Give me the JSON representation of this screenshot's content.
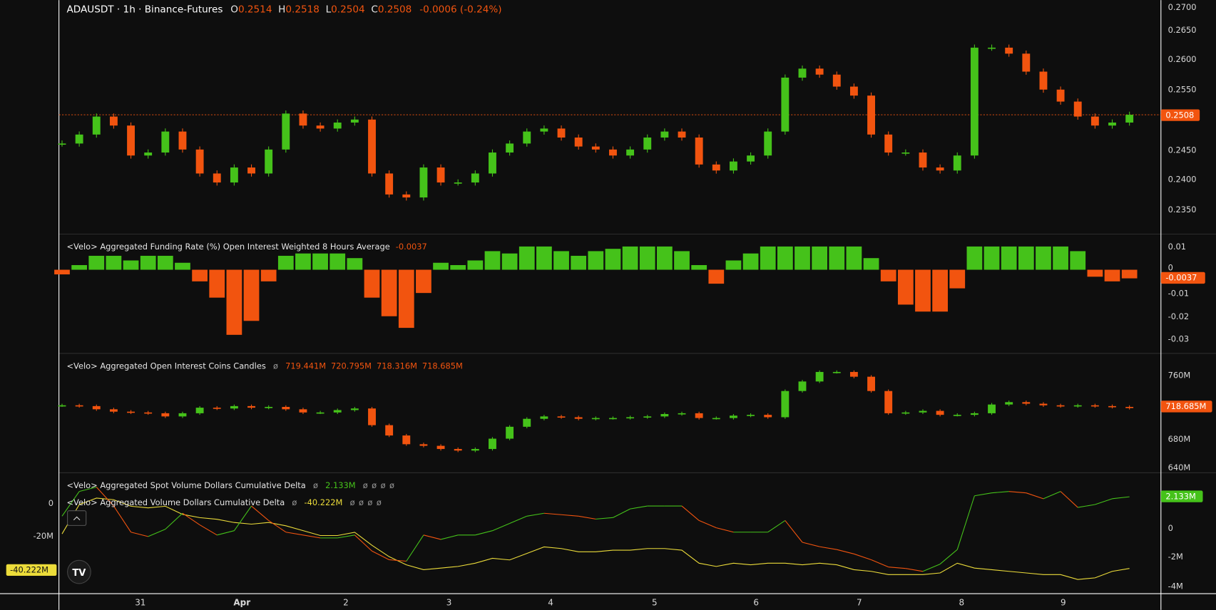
{
  "colors": {
    "up": "#45c21a",
    "down": "#f2540f",
    "yellow": "#ecdc3a",
    "background": "#0e0e0e"
  },
  "header": {
    "symbol": "ADAUSDT · 1h · Binance-Futures",
    "o_label": "O",
    "o": "0.2514",
    "h_label": "H",
    "h": "0.2518",
    "l_label": "L",
    "l": "0.2504",
    "c_label": "C",
    "c": "0.2508",
    "change": "-0.0006 (-0.24%)"
  },
  "funding": {
    "title": "<Velo> Aggregated Funding Rate (%) Open Interest Weighted 8 Hours Average",
    "value": "-0.0037"
  },
  "oi": {
    "title": "<Velo> Aggregated Open Interest Coins Candles",
    "values": [
      "719.441M",
      "720.795M",
      "718.316M",
      "718.685M"
    ]
  },
  "spot_cvd": {
    "title": "<Velo> Aggregated Spot Volume Dollars Cumulative Delta",
    "value": "2.133M"
  },
  "all_cvd": {
    "title": "<Velo> Aggregated Volume Dollars Cumulative Delta",
    "value": "-40.222M"
  },
  "icons": {
    "hidden_value": "ø",
    "collapse": "chevron-up-icon",
    "logo": "tradingview-logo"
  },
  "axes": {
    "price_ticks": [
      "0.2700",
      "0.2650",
      "0.2600",
      "0.2550",
      "0.2450",
      "0.2400",
      "0.2350"
    ],
    "price_last": "0.2508",
    "funding_ticks": [
      "0.01",
      "0",
      "-0.01",
      "-0.02",
      "-0.03"
    ],
    "funding_last": "-0.0037",
    "oi_ticks": [
      "760M",
      "680M",
      "640M"
    ],
    "oi_last": "718.685M",
    "spot_ticks": [
      "0",
      "-2M",
      "-4M"
    ],
    "spot_last": "2.133M",
    "all_ticks": [
      "0",
      "-20M"
    ],
    "all_last": "-40.222M",
    "time_labels": [
      "31",
      "Apr",
      "2",
      "3",
      "4",
      "5",
      "6",
      "7",
      "8",
      "9"
    ]
  },
  "chart_data": [
    {
      "type": "candlestick",
      "title": "ADAUSDT · 1h · Binance-Futures",
      "ylim": [
        0.233,
        0.27
      ],
      "close": [
        0.246,
        0.2475,
        0.2505,
        0.249,
        0.244,
        0.2445,
        0.248,
        0.245,
        0.241,
        0.2395,
        0.242,
        0.241,
        0.245,
        0.251,
        0.249,
        0.2485,
        0.2495,
        0.25,
        0.241,
        0.2375,
        0.237,
        0.242,
        0.2395,
        0.2395,
        0.241,
        0.2445,
        0.246,
        0.248,
        0.2485,
        0.247,
        0.2455,
        0.245,
        0.244,
        0.245,
        0.247,
        0.248,
        0.247,
        0.2425,
        0.2415,
        0.243,
        0.244,
        0.248,
        0.257,
        0.2585,
        0.2575,
        0.2555,
        0.254,
        0.2475,
        0.2445,
        0.2445,
        0.242,
        0.2415,
        0.244,
        0.262,
        0.262,
        0.261,
        0.258,
        0.255,
        0.253,
        0.2505,
        0.249,
        0.2495,
        0.2508
      ]
    },
    {
      "type": "bar",
      "title": "<Velo> Aggregated Funding Rate (%) Open Interest Weighted 8 Hours Average",
      "ylim": [
        -0.035,
        0.015
      ],
      "values": [
        -0.002,
        0.002,
        0.006,
        0.006,
        0.004,
        0.006,
        0.006,
        0.003,
        -0.005,
        -0.012,
        -0.028,
        -0.022,
        -0.005,
        0.006,
        0.007,
        0.007,
        0.007,
        0.005,
        -0.012,
        -0.02,
        -0.025,
        -0.01,
        0.003,
        0.002,
        0.004,
        0.008,
        0.007,
        0.01,
        0.01,
        0.008,
        0.006,
        0.008,
        0.009,
        0.01,
        0.01,
        0.01,
        0.008,
        0.002,
        -0.006,
        0.004,
        0.007,
        0.01,
        0.01,
        0.01,
        0.01,
        0.01,
        0.01,
        0.005,
        -0.005,
        -0.015,
        -0.018,
        -0.018,
        -0.008,
        0.01,
        0.01,
        0.01,
        0.01,
        0.01,
        0.01,
        0.008,
        -0.003,
        -0.005,
        -0.0037
      ]
    },
    {
      "type": "candlestick",
      "title": "<Velo> Aggregated Open Interest Coins Candles",
      "unit": "M",
      "ylim": [
        635,
        775
      ],
      "close": [
        722,
        721,
        717,
        714,
        713,
        712,
        708,
        712,
        719,
        718,
        721,
        719,
        720,
        717,
        713,
        713,
        716,
        718,
        697,
        684,
        673,
        671,
        667,
        665,
        667,
        680,
        695,
        705,
        708,
        707,
        705,
        706,
        706,
        707,
        708,
        711,
        712,
        706,
        706,
        709,
        710,
        707,
        740,
        752,
        764,
        764,
        758,
        740,
        712,
        713,
        715,
        710,
        710,
        712,
        723,
        726,
        724,
        722,
        721,
        722,
        721,
        720,
        718.685
      ]
    },
    {
      "type": "line",
      "title": "<Velo> Aggregated Spot Volume Dollars Cumulative Delta",
      "unit": "M",
      "axis": "right",
      "values": [
        0.8,
        2.5,
        2.8,
        1.5,
        -0.3,
        -0.6,
        -0.1,
        1.0,
        0.2,
        -0.5,
        -0.2,
        1.5,
        0.5,
        -0.3,
        -0.5,
        -0.7,
        -0.7,
        -0.5,
        -1.6,
        -2.2,
        -2.3,
        -0.5,
        -0.8,
        -0.5,
        -0.5,
        -0.2,
        0.3,
        0.8,
        1.0,
        0.9,
        0.8,
        0.6,
        0.7,
        1.3,
        1.5,
        1.5,
        1.5,
        0.5,
        0.0,
        -0.3,
        -0.3,
        -0.3,
        0.5,
        -1.0,
        -1.3,
        -1.5,
        -1.8,
        -2.2,
        -2.7,
        -2.8,
        -3.0,
        -2.5,
        -1.5,
        2.2,
        2.4,
        2.5,
        2.4,
        2.0,
        2.5,
        1.4,
        1.6,
        2.0,
        2.133
      ]
    },
    {
      "type": "line",
      "title": "<Velo> Aggregated Volume Dollars Cumulative Delta",
      "unit": "M",
      "axis": "left",
      "values": [
        -19,
        -1,
        3,
        2,
        -2,
        -3,
        -2,
        -7,
        -9,
        -10,
        -12,
        -13,
        -12,
        -14,
        -17,
        -20,
        -20,
        -18,
        -26,
        -33,
        -38,
        -41,
        -40,
        -39,
        -37,
        -34,
        -35,
        -31,
        -27,
        -28,
        -30,
        -30,
        -29,
        -29,
        -28,
        -28,
        -29,
        -37,
        -39,
        -37,
        -38,
        -37,
        -37,
        -38,
        -37,
        -38,
        -41,
        -42,
        -44,
        -44,
        -44,
        -43,
        -37,
        -40,
        -41,
        -42,
        -43,
        -44,
        -44,
        -47,
        -46,
        -42,
        -40.222
      ]
    }
  ]
}
